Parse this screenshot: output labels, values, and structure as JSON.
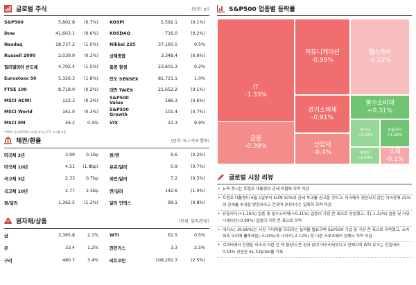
{
  "colors": {
    "accent": "#c0504d",
    "treemap_red_dark": "#f06e6e",
    "treemap_red_mid": "#f48c8c",
    "treemap_red_light": "#f7a9a9",
    "treemap_red_pale": "#f8bdbd",
    "treemap_green": "#71c471",
    "treemap_green_light": "#96d696"
  },
  "stocks": {
    "title": "글로벌 주식",
    "unit": "(단위: pt)",
    "note": "* MSCI 및 S&P500 스타일 지수는 ETF 수익률 기준",
    "rows": [
      {
        "n1": "S&P500",
        "v1": "5,802.8",
        "c1": "(0.7%)",
        "n2": "KOSPI",
        "v2": "2,592.1",
        "c2": "(0.1%)"
      },
      {
        "n1": "Dow",
        "v1": "41,603.1",
        "c1": "(0.6%)",
        "n2": "KOSDAQ",
        "v2": "716.0",
        "c2": "(0.2%)"
      },
      {
        "n1": "Nasdaq",
        "v1": "18,737.2",
        "c1": "(1.0%)",
        "n2": "Nikkei 225",
        "v2": "37,160.5",
        "c2": "0.5%"
      },
      {
        "n1": "Russell 2000",
        "v1": "2,039.9",
        "c1": "(0.3%)",
        "n2": "상해종합",
        "v2": "3,348.4",
        "c2": "(0.9%)"
      },
      {
        "n1": "필라델피아 반도체",
        "v1": "4,702.4",
        "c1": "(1.5%)",
        "n2": "홍콩 항셍",
        "v2": "23,601.3",
        "c2": "0.2%"
      },
      {
        "n1": "Eurostoxx 50",
        "v1": "5,326.3",
        "c1": "(1.8%)",
        "n2": "인도 SENSEX",
        "v2": "81,721.1",
        "c2": "1.0%"
      },
      {
        "n1": "FTSE 100",
        "v1": "8,718.0",
        "c1": "(0.2%)",
        "n2": "대만 TAIEX",
        "v2": "21,652.2",
        "c2": "(0.1%)"
      },
      {
        "n1": "MSCI ACWI",
        "v1": "122.3",
        "c1": "(0.3%)",
        "n2": "S&P500 Value",
        "v2": "186.3",
        "c2": "(0.6%)"
      },
      {
        "n1": "MSCI World",
        "v1": "161.0",
        "c1": "(0.3%)",
        "n2": "S&P500 Growth",
        "v2": "101.4",
        "c2": "(0.7%)"
      },
      {
        "n1": "MSCI EM",
        "v1": "46.2",
        "c1": "0.4%",
        "n2": "VIX",
        "v2": "22.3",
        "c2": "9.9%"
      }
    ]
  },
  "bonds": {
    "title": "채권/환율",
    "unit": "(단위: % / 각국 통화)",
    "rows": [
      {
        "n1": "미국채 2년",
        "v1": "3.99",
        "c1": "0.1bp",
        "n2": "원/엔",
        "v2": "9.6",
        "c2": "(0.2%)"
      },
      {
        "n1": "미국채 10년",
        "v1": "4.51",
        "c1": "(1.8bp)",
        "n2": "유로/달러",
        "v2": "0.9",
        "c2": "(0.7%)"
      },
      {
        "n1": "국고채 3년",
        "v1": "2.33",
        "c1": "0.7bp",
        "n2": "위안/달러",
        "v2": "7.2",
        "c2": "(0.3%)"
      },
      {
        "n1": "국고채 10년",
        "v1": "2.77",
        "c1": "2.5bp",
        "n2": "엔/달러",
        "v2": "142.6",
        "c2": "(1.0%)"
      },
      {
        "n1": "원/달러",
        "v1": "1,362.5",
        "c1": "(1.3%)",
        "n2": "달러 인덱스",
        "v2": "99.1",
        "c2": "(0.8%)"
      }
    ]
  },
  "commodities": {
    "title": "원자재/상품",
    "unit": "(단위: 달러/단위)",
    "rows": [
      {
        "n1": "금",
        "v1": "3,365.8",
        "c1": "2.1%",
        "n2": "WTI",
        "v2": "61.5",
        "c2": "0.5%"
      },
      {
        "n1": "은",
        "v1": "33.4",
        "c1": "1.2%",
        "n2": "천연가스",
        "v2": "3.3",
        "c2": "2.5%"
      },
      {
        "n1": "구리",
        "v1": "480.7",
        "c1": "3.4%",
        "n2": "비트코인",
        "v2": "108,261.3",
        "c2": "(2.5%)"
      }
    ]
  },
  "sectors": {
    "title": "S&P500 업종별 등락률",
    "tiles": [
      {
        "name": "IT",
        "value": "-1.33%"
      },
      {
        "name": "커뮤니케이션",
        "value": "-0.99%"
      },
      {
        "name": "헬스케어",
        "value": "-0.22%"
      },
      {
        "name": "경기소비재",
        "value": "-0.91%"
      },
      {
        "name": "필수소비재",
        "value": "+0.31%"
      },
      {
        "name": "금융",
        "value": "-0.39%"
      },
      {
        "name": "에너지",
        "value": "+0.28%"
      },
      {
        "name": "유틸리티",
        "value": "+1.16%"
      },
      {
        "name": "산업재",
        "value": "-0.4%"
      },
      {
        "name": "부동산",
        "value": "+0.04%"
      },
      {
        "name": "소재",
        "value": "-0.1%"
      }
    ]
  },
  "market_review": {
    "title": "글로벌 시장 리뷰",
    "items": [
      "뉴욕 증시는 트럼프 대통령의 관세 위협에 하락 마감",
      "트럼프 대통령이 6월 1일부터 EU에 50%의 관세 부과를 권고할 것이고, 미국에서 생산되지 않는 아이폰에 25%의 관세를 부과할 방침이라고 전하며 3대지수는 일제히 하락 마감",
      "유틸리티(+1.16%) 업종 및 필수소비재(+0.31%) 업종이 가장 큰 폭으로 상승했고, IT(-1.33%) 업종 및 커뮤니케이션(-0.99%) 업종이 가장 큰 폭으로 하락",
      "데커스(-19.86%)는 시장 기대치를 하회하는 실적을 발표하며 S&P500 기업 중 가장 큰 폭으로 하락했고, 소비 위축 우려에 룰루레몬(-3.03%)과 나이키(-2.12%) 등 다른 스포츠웨어 업체도 하락 마감",
      "로이터에서 진행된 미국과 이란 간 핵 협상이 큰 성과 없이 마무리되었다고 전해지며 WTI 유가는 전일대비 0.54% 상승한 61.53$/bbl을 기록"
    ]
  }
}
